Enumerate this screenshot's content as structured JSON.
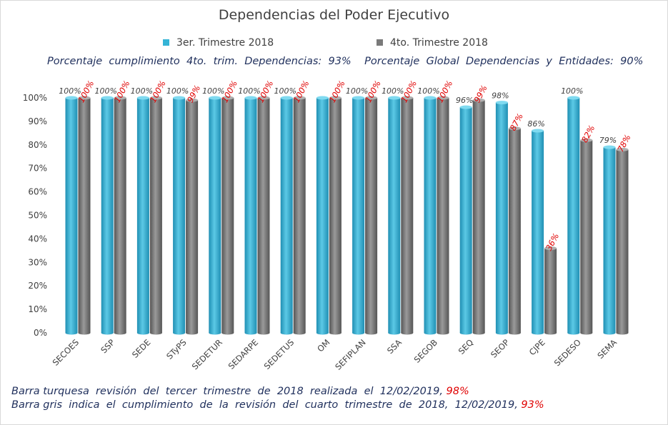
{
  "title": "Dependencias del Poder Ejecutivo",
  "legend": [
    {
      "label": "3er. Trimestre 2018",
      "color": "#35b4d6"
    },
    {
      "label": "4to. Trimestre 2018",
      "color": "#7a7a7a"
    }
  ],
  "subtitle": "Porcentaje  cumplimiento  4to.  trim.  Dependencias:  93%    Porcentaje  Global  Dependencias  y  Entidades:  90%",
  "notes": [
    {
      "text": "Barra turquesa  revisión  del  tercer  trimestre  de  2018  realizada  el  12/02/2019, ",
      "pct": "98%"
    },
    {
      "text": "Barra gris  indica  el  cumplimiento  de  la  revisión  del  cuarto  trimestre  de  2018,  12/02/2019, ",
      "pct": "93%"
    }
  ],
  "chart_data": {
    "type": "bar",
    "title": "Dependencias del Poder Ejecutivo",
    "categories": [
      "SECOES",
      "SSP",
      "SEDE",
      "STyPS",
      "SEDETUR",
      "SEDARPE",
      "SEDETUS",
      "OM",
      "SEFIPLAN",
      "SSA",
      "SEGOB",
      "SEQ",
      "SEOP",
      "CJPE",
      "SEDESO",
      "SEMA"
    ],
    "series": [
      {
        "name": "3er. Trimestre 2018",
        "color": "#35b4d6",
        "label_color": "#404040",
        "values": [
          100,
          100,
          100,
          100,
          100,
          100,
          100,
          100,
          100,
          100,
          100,
          96,
          98,
          86,
          100,
          79
        ],
        "labels": [
          "100%",
          "100%",
          "100%",
          "100%",
          "100%",
          "100%",
          "100%",
          "",
          "100%",
          "100%",
          "100%",
          "96%",
          "98%",
          "86%",
          "100%",
          "79%"
        ]
      },
      {
        "name": "4to. Trimestre 2018",
        "color": "#7a7a7a",
        "label_color": "#e00000",
        "values": [
          100,
          100,
          100,
          99,
          100,
          100,
          100,
          100,
          100,
          100,
          100,
          99,
          87,
          36,
          82,
          78
        ],
        "labels": [
          "100%",
          "100%",
          "100%",
          "99%",
          "100%",
          "100%",
          "100%",
          "100%",
          "100%",
          "100%",
          "100%",
          "99%",
          "87%",
          "36%",
          "82%",
          "78%"
        ]
      }
    ],
    "yticks": [
      "0%",
      "10%",
      "20%",
      "30%",
      "40%",
      "50%",
      "60%",
      "70%",
      "80%",
      "90%",
      "100%"
    ],
    "ylim": [
      0,
      100
    ],
    "grid": false,
    "legend_position": "top"
  }
}
